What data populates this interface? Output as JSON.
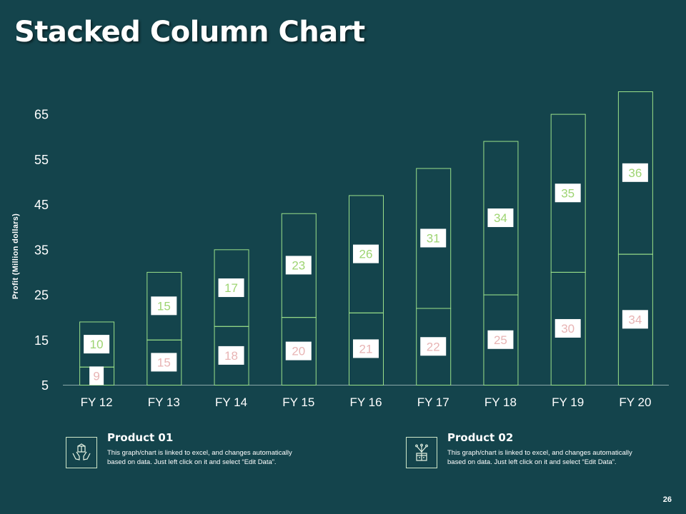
{
  "slide": {
    "title": "Stacked Column Chart",
    "page_number": "26"
  },
  "legend": [
    {
      "title": "Product 01",
      "description": "This graph/chart is linked to excel, and changes automatically based on data. Just left click on it and select “Edit Data”.",
      "icon": "hands-holding-box-icon"
    },
    {
      "title": "Product 02",
      "description": "This graph/chart is linked to excel, and changes automatically based on data. Just left click on it and select “Edit Data”.",
      "icon": "gift-box-icon"
    }
  ],
  "colors": {
    "background": "#14444c",
    "bar_outline": "#9be08a",
    "label_product01": "#e8b4b4",
    "label_product02": "#9ed472"
  },
  "chart_data": {
    "type": "bar",
    "stacked": true,
    "categories": [
      "FY 12",
      "FY 13",
      "FY 14",
      "FY 15",
      "FY 16",
      "FY 17",
      "FY 18",
      "FY 19",
      "FY 20"
    ],
    "series": [
      {
        "name": "Product 01",
        "values": [
          9,
          15,
          18,
          20,
          21,
          22,
          25,
          30,
          34
        ]
      },
      {
        "name": "Product 02",
        "values": [
          10,
          15,
          17,
          23,
          26,
          31,
          34,
          35,
          36
        ]
      }
    ],
    "ylabel": "Profit  (Million dollars)",
    "xlabel": "",
    "yticks": [
      5,
      15,
      25,
      35,
      45,
      55,
      65
    ],
    "ylim": [
      5,
      70
    ],
    "grid": false
  }
}
